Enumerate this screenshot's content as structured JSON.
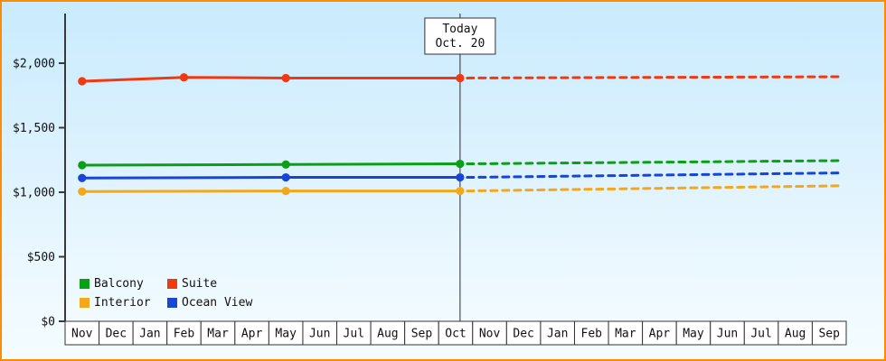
{
  "colors": {
    "frame_border": "#ff8b00",
    "axis": "#3a3a3a",
    "month_cell_bg": "#ffffff",
    "today_line": "#2b2b2b",
    "label_text": "#111111"
  },
  "chart_data": {
    "type": "line",
    "title": "",
    "xlabel": "",
    "ylabel": "",
    "grid": false,
    "legend_position": "bottom-left-inside",
    "y_axis": {
      "ticks": [
        {
          "value": 0,
          "label": "$0"
        },
        {
          "value": 500,
          "label": "$500"
        },
        {
          "value": 1000,
          "label": "$1,000"
        },
        {
          "value": 1500,
          "label": "$1,500"
        },
        {
          "value": 2000,
          "label": "$2,000"
        }
      ],
      "ylim": [
        0,
        2400
      ]
    },
    "x_axis": {
      "month_labels": [
        "Nov",
        "Dec",
        "Jan",
        "Feb",
        "Mar",
        "Apr",
        "May",
        "Jun",
        "Jul",
        "Aug",
        "Sep",
        "Oct",
        "Nov",
        "Dec",
        "Jan",
        "Feb",
        "Mar",
        "Apr",
        "May",
        "Jun",
        "Jul",
        "Aug",
        "Sep"
      ]
    },
    "today": {
      "label_line1": "Today",
      "label_line2": "Oct. 20",
      "month_index": 11,
      "month_fraction": 0.63
    },
    "series": [
      {
        "name": "Suite",
        "color": "#ee3911",
        "points": [
          {
            "month": 0,
            "value": 1860
          },
          {
            "month": 3,
            "value": 1890
          },
          {
            "month": 6,
            "value": 1885
          },
          {
            "month": "today",
            "value": 1885
          }
        ],
        "forecast_end_value": 1895
      },
      {
        "name": "Balcony",
        "color": "#0aa015",
        "points": [
          {
            "month": 0,
            "value": 1210
          },
          {
            "month": 6,
            "value": 1215
          },
          {
            "month": "today",
            "value": 1220
          }
        ],
        "forecast_end_value": 1245
      },
      {
        "name": "Ocean View",
        "color": "#1745d6",
        "points": [
          {
            "month": 0,
            "value": 1110
          },
          {
            "month": 6,
            "value": 1115
          },
          {
            "month": "today",
            "value": 1115
          }
        ],
        "forecast_end_value": 1150
      },
      {
        "name": "Interior",
        "color": "#f3a81b",
        "points": [
          {
            "month": 0,
            "value": 1005
          },
          {
            "month": 6,
            "value": 1010
          },
          {
            "month": "today",
            "value": 1010
          }
        ],
        "forecast_end_value": 1050
      }
    ],
    "legend": {
      "items": [
        {
          "label": "Balcony",
          "color": "#0aa015"
        },
        {
          "label": "Suite",
          "color": "#ee3911"
        },
        {
          "label": "Interior",
          "color": "#f3a81b"
        },
        {
          "label": "Ocean View",
          "color": "#1745d6"
        }
      ]
    }
  }
}
